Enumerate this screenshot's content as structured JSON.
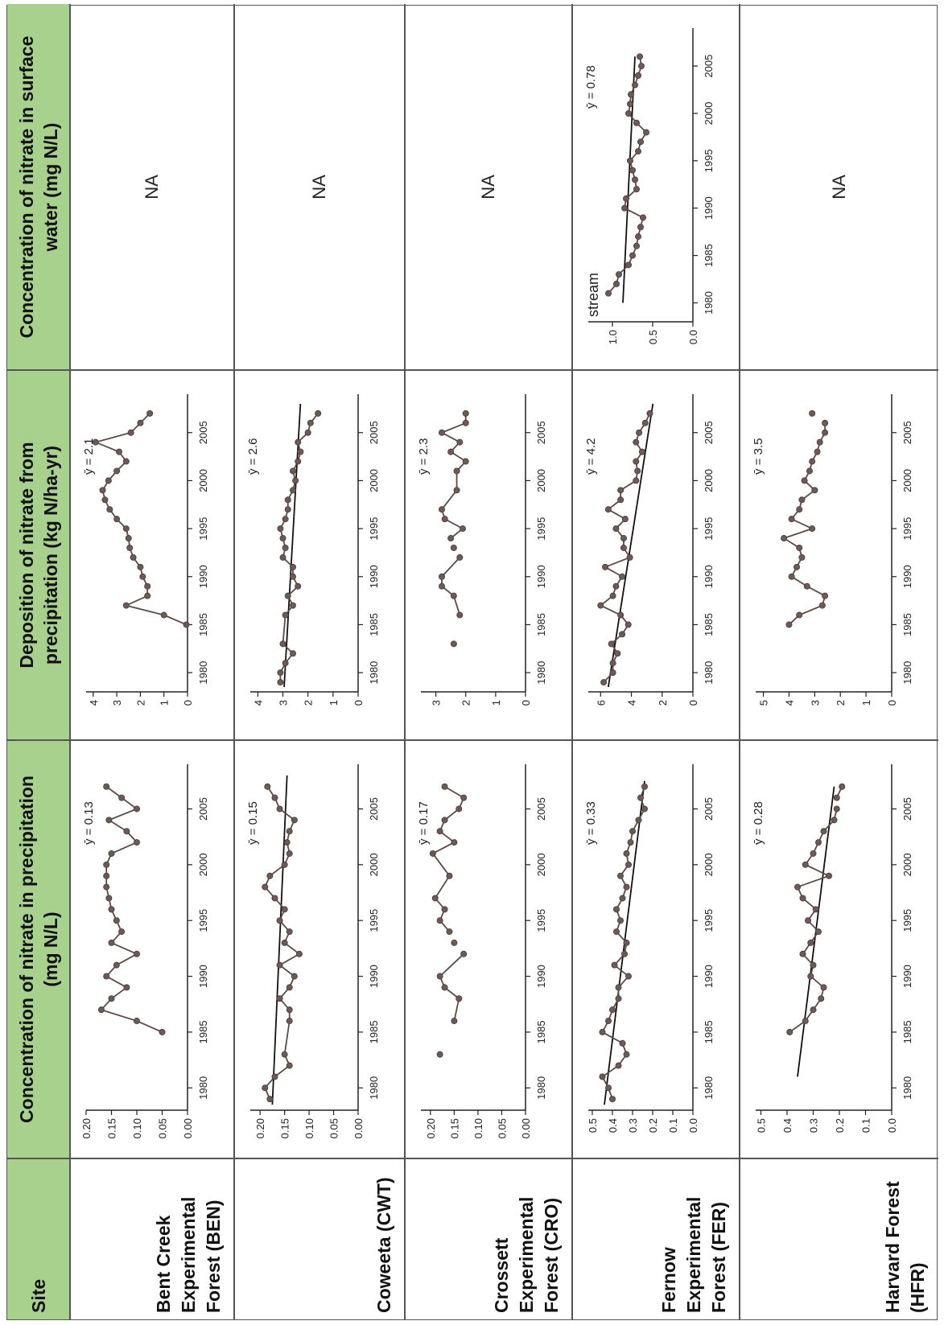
{
  "headers": {
    "site": "Site",
    "conc_precip": "Concentration of nitrate in precipitation  (mg N/L)",
    "deposition": "Deposition of nitrate from precipitation (kg N/ha-yr)",
    "surface_water": "Concentration of nitrate in surface water (mg N/L)"
  },
  "sites": [
    {
      "name": "Bent Creek Experimental Forest (BEN)",
      "surface": "NA"
    },
    {
      "name": "Coweeta (CWT)",
      "surface": "NA"
    },
    {
      "name": "Crossett Experimental Forest (CRO)",
      "surface": "NA"
    },
    {
      "name": "Fernow Experimental Forest (FER)",
      "surface": "chart"
    },
    {
      "name": "Harvard Forest (HFR)",
      "surface": "NA"
    }
  ],
  "chart_data": [
    {
      "id": "BEN-conc",
      "type": "line",
      "site": "BEN",
      "xlim": [
        1978,
        2009
      ],
      "ylim": [
        0,
        0.2
      ],
      "yticks": [
        0,
        0.05,
        0.1,
        0.15,
        0.2
      ],
      "xticks": [
        1980,
        1985,
        1990,
        1995,
        2000,
        2005
      ],
      "mean_label": "ȳ = 0.13",
      "trend": null,
      "x": [
        1985,
        1986,
        1987,
        1988,
        1989,
        1990,
        1991,
        1992,
        1993,
        1994,
        1995,
        1996,
        1997,
        1998,
        1999,
        2000,
        2001,
        2002,
        2003,
        2004,
        2005,
        2006,
        2007
      ],
      "y": [
        0.05,
        0.1,
        0.17,
        0.15,
        0.12,
        0.16,
        0.14,
        0.1,
        0.15,
        0.13,
        0.14,
        0.15,
        0.155,
        0.16,
        0.16,
        0.16,
        0.15,
        0.1,
        0.12,
        0.155,
        0.1,
        0.13,
        0.16
      ]
    },
    {
      "id": "BEN-dep",
      "type": "line",
      "site": "BEN",
      "xlim": [
        1978,
        2009
      ],
      "ylim": [
        0,
        4.3
      ],
      "yticks": [
        0,
        1,
        2,
        3,
        4
      ],
      "xticks": [
        1980,
        1985,
        1990,
        1995,
        2000,
        2005
      ],
      "mean_label": "ȳ = 2.1",
      "trend": null,
      "x": [
        1985,
        1986,
        1987,
        1988,
        1989,
        1990,
        1991,
        1992,
        1993,
        1994,
        1995,
        1996,
        1997,
        1998,
        1999,
        2000,
        2001,
        2002,
        2003,
        2004,
        2005,
        2006,
        2007
      ],
      "y": [
        0.05,
        1.0,
        2.6,
        1.7,
        1.7,
        1.9,
        2.0,
        2.3,
        2.45,
        2.5,
        2.6,
        3.0,
        3.3,
        3.5,
        3.6,
        3.35,
        3.0,
        2.6,
        2.9,
        3.9,
        2.4,
        2.0,
        1.6
      ]
    },
    {
      "id": "CWT-conc",
      "type": "line",
      "site": "CWT",
      "xlim": [
        1978,
        2009
      ],
      "ylim": [
        0,
        0.22
      ],
      "yticks": [
        0,
        0.05,
        0.1,
        0.15,
        0.2
      ],
      "xticks": [
        1980,
        1985,
        1990,
        1995,
        2000,
        2005
      ],
      "mean_label": "ȳ = 0.15",
      "trend": [
        [
          1978.5,
          0.175
        ],
        [
          2008,
          0.145
        ]
      ],
      "x": [
        1979,
        1980,
        1981,
        1982,
        1983,
        1986,
        1987,
        1988,
        1989,
        1990,
        1991,
        1992,
        1993,
        1994,
        1995,
        1996,
        1997,
        1998,
        1999,
        2000,
        2001,
        2002,
        2003,
        2004,
        2005,
        2006,
        2007
      ],
      "y": [
        0.18,
        0.19,
        0.17,
        0.14,
        0.15,
        0.14,
        0.14,
        0.16,
        0.14,
        0.13,
        0.16,
        0.12,
        0.15,
        0.14,
        0.16,
        0.15,
        0.17,
        0.19,
        0.18,
        0.15,
        0.14,
        0.145,
        0.14,
        0.13,
        0.16,
        0.17,
        0.185
      ]
    },
    {
      "id": "CWT-dep",
      "type": "line",
      "site": "CWT",
      "xlim": [
        1978,
        2009
      ],
      "ylim": [
        0,
        4.3
      ],
      "yticks": [
        0,
        1,
        2,
        3,
        4
      ],
      "xticks": [
        1980,
        1985,
        1990,
        1995,
        2000,
        2005
      ],
      "mean_label": "ȳ = 2.6",
      "trend": [
        [
          1978.5,
          2.95
        ],
        [
          2008,
          2.3
        ]
      ],
      "x": [
        1979,
        1980,
        1981,
        1982,
        1983,
        1986,
        1987,
        1988,
        1989,
        1990,
        1991,
        1992,
        1993,
        1994,
        1995,
        1996,
        1997,
        1998,
        1999,
        2000,
        2001,
        2002,
        2003,
        2004,
        2005,
        2006,
        2007
      ],
      "y": [
        3.1,
        3.1,
        2.9,
        2.6,
        3.0,
        2.9,
        2.6,
        2.8,
        2.4,
        2.6,
        2.6,
        3.0,
        2.9,
        3.0,
        3.1,
        2.9,
        2.8,
        2.8,
        2.6,
        2.5,
        2.6,
        2.4,
        2.3,
        2.4,
        2.0,
        1.9,
        1.6
      ]
    },
    {
      "id": "CRO-conc",
      "type": "line",
      "site": "CRO",
      "xlim": [
        1978,
        2009
      ],
      "ylim": [
        0,
        0.22
      ],
      "yticks": [
        0,
        0.05,
        0.1,
        0.15,
        0.2
      ],
      "xticks": [
        1980,
        1985,
        1990,
        1995,
        2000,
        2005
      ],
      "mean_label": "ȳ = 0.17",
      "trend": null,
      "x": [
        1983,
        1986,
        1988,
        1989,
        1990,
        1992,
        1993,
        1994,
        1995,
        1996,
        1997,
        1999,
        2001,
        2002,
        2003,
        2004,
        2005,
        2006,
        2007
      ],
      "y": [
        0.18,
        0.15,
        0.14,
        0.17,
        0.18,
        0.13,
        0.15,
        0.16,
        0.18,
        0.17,
        0.19,
        0.16,
        0.195,
        0.15,
        0.18,
        0.17,
        0.14,
        0.13,
        0.17
      ],
      "breaks": [
        1,
        6,
        7
      ]
    },
    {
      "id": "CRO-dep",
      "type": "line",
      "site": "CRO",
      "xlim": [
        1978,
        2009
      ],
      "ylim": [
        0,
        3.5
      ],
      "yticks": [
        0,
        1,
        2,
        3
      ],
      "xticks": [
        1980,
        1985,
        1990,
        1995,
        2000,
        2005
      ],
      "mean_label": "ȳ = 2.3",
      "trend": null,
      "x": [
        1983,
        1986,
        1988,
        1989,
        1990,
        1992,
        1993,
        1994,
        1995,
        1996,
        1997,
        1999,
        2001,
        2002,
        2003,
        2004,
        2005,
        2006,
        2007
      ],
      "y": [
        2.4,
        2.2,
        2.4,
        2.8,
        2.8,
        2.2,
        2.4,
        2.5,
        2.1,
        2.7,
        2.8,
        2.3,
        2.3,
        2.0,
        2.5,
        2.2,
        2.8,
        2.0,
        2.0
      ],
      "breaks": [
        1,
        6,
        7
      ]
    },
    {
      "id": "FER-conc",
      "type": "line",
      "site": "FER",
      "xlim": [
        1978,
        2009
      ],
      "ylim": [
        0,
        0.52
      ],
      "yticks": [
        0,
        0.1,
        0.2,
        0.3,
        0.4,
        0.5
      ],
      "xticks": [
        1980,
        1985,
        1990,
        1995,
        2000,
        2005
      ],
      "mean_label": "ȳ = 0.33",
      "trend": [
        [
          1978.5,
          0.44
        ],
        [
          2007.5,
          0.24
        ]
      ],
      "x": [
        1979,
        1980,
        1981,
        1982,
        1983,
        1984,
        1985,
        1986,
        1987,
        1988,
        1989,
        1990,
        1991,
        1992,
        1993,
        1994,
        1995,
        1996,
        1997,
        1998,
        1999,
        2000,
        2001,
        2002,
        2003,
        2004,
        2005,
        2006,
        2007
      ],
      "y": [
        0.4,
        0.42,
        0.45,
        0.37,
        0.33,
        0.35,
        0.45,
        0.42,
        0.4,
        0.37,
        0.37,
        0.32,
        0.39,
        0.34,
        0.33,
        0.38,
        0.36,
        0.38,
        0.35,
        0.33,
        0.36,
        0.32,
        0.33,
        0.31,
        0.3,
        0.27,
        0.24,
        0.26,
        0.24
      ]
    },
    {
      "id": "FER-dep",
      "type": "line",
      "site": "FER",
      "xlim": [
        1978,
        2009
      ],
      "ylim": [
        0,
        6.8
      ],
      "yticks": [
        0,
        2,
        4,
        6
      ],
      "xticks": [
        1980,
        1985,
        1990,
        1995,
        2000,
        2005
      ],
      "mean_label": "ȳ = 4.2",
      "trend": [
        [
          1978.5,
          5.5
        ],
        [
          2008,
          2.6
        ]
      ],
      "x": [
        1979,
        1980,
        1981,
        1982,
        1983,
        1984,
        1985,
        1986,
        1987,
        1988,
        1989,
        1990,
        1991,
        1992,
        1993,
        1994,
        1995,
        1996,
        1997,
        1998,
        1999,
        2000,
        2001,
        2002,
        2003,
        2004,
        2005,
        2006,
        2007
      ],
      "y": [
        5.8,
        5.2,
        5.2,
        4.9,
        5.3,
        4.6,
        4.2,
        4.7,
        6.0,
        5.2,
        5.0,
        4.6,
        5.7,
        4.1,
        4.5,
        4.5,
        5.0,
        4.4,
        5.5,
        4.7,
        4.7,
        3.7,
        3.6,
        3.7,
        3.3,
        3.7,
        3.5,
        3.1,
        2.8
      ]
    },
    {
      "id": "FER-stream",
      "type": "line",
      "site": "FER",
      "xlim": [
        1978,
        2009
      ],
      "ylim": [
        0,
        1.3
      ],
      "yticks": [
        0,
        0.5,
        1.0
      ],
      "xticks": [
        1980,
        1985,
        1990,
        1995,
        2000,
        2005
      ],
      "mean_label": "ȳ = 0.78",
      "series_label": "stream",
      "trend": [
        [
          1980,
          0.87
        ],
        [
          2006,
          0.72
        ]
      ],
      "x": [
        1981,
        1982,
        1983,
        1984,
        1985,
        1986,
        1987,
        1988,
        1989,
        1990,
        1991,
        1992,
        1993,
        1994,
        1995,
        1996,
        1997,
        1998,
        1999,
        2000,
        2001,
        2002,
        2003,
        2004,
        2005,
        2006
      ],
      "y": [
        1.05,
        0.95,
        0.92,
        0.8,
        0.75,
        0.7,
        0.68,
        0.65,
        0.62,
        0.85,
        0.83,
        0.7,
        0.72,
        0.75,
        0.78,
        0.68,
        0.65,
        0.58,
        0.7,
        0.8,
        0.78,
        0.77,
        0.72,
        0.68,
        0.64,
        0.66
      ]
    },
    {
      "id": "HFR-conc",
      "type": "line",
      "site": "HFR",
      "xlim": [
        1978,
        2009
      ],
      "ylim": [
        0,
        0.52
      ],
      "yticks": [
        0,
        0.1,
        0.2,
        0.3,
        0.4,
        0.5
      ],
      "xticks": [
        1980,
        1985,
        1990,
        1995,
        2000,
        2005
      ],
      "mean_label": "ȳ = 0.28",
      "trend": [
        [
          1981,
          0.36
        ],
        [
          2007,
          0.22
        ]
      ],
      "x": [
        1985,
        1986,
        1987,
        1988,
        1989,
        1990,
        1991,
        1992,
        1993,
        1994,
        1995,
        1996,
        1997,
        1998,
        1999,
        2000,
        2001,
        2002,
        2003,
        2004,
        2005,
        2006,
        2007
      ],
      "y": [
        0.39,
        0.33,
        0.3,
        0.27,
        0.26,
        0.31,
        0.3,
        0.34,
        0.31,
        0.28,
        0.32,
        0.29,
        0.34,
        0.36,
        0.24,
        0.33,
        0.3,
        0.28,
        0.26,
        0.22,
        0.21,
        0.21,
        0.19
      ],
      "breaks": [
        21
      ]
    },
    {
      "id": "HFR-dep",
      "type": "line",
      "site": "HFR",
      "xlim": [
        1978,
        2009
      ],
      "ylim": [
        0,
        5.3
      ],
      "yticks": [
        0,
        1,
        2,
        3,
        4,
        5
      ],
      "xticks": [
        1980,
        1985,
        1990,
        1995,
        2000,
        2005
      ],
      "mean_label": "ȳ = 3.5",
      "trend": null,
      "x": [
        1985,
        1986,
        1987,
        1988,
        1989,
        1990,
        1991,
        1992,
        1993,
        1994,
        1995,
        1996,
        1997,
        1998,
        1999,
        2000,
        2001,
        2002,
        2003,
        2004,
        2005,
        2006,
        2007
      ],
      "y": [
        4.0,
        3.6,
        2.7,
        2.6,
        3.3,
        3.9,
        3.7,
        3.5,
        3.6,
        4.2,
        3.1,
        3.9,
        3.6,
        3.5,
        3.0,
        3.4,
        3.2,
        3.1,
        2.9,
        2.8,
        2.6,
        2.6,
        3.1
      ],
      "breaks": [
        22
      ]
    }
  ]
}
